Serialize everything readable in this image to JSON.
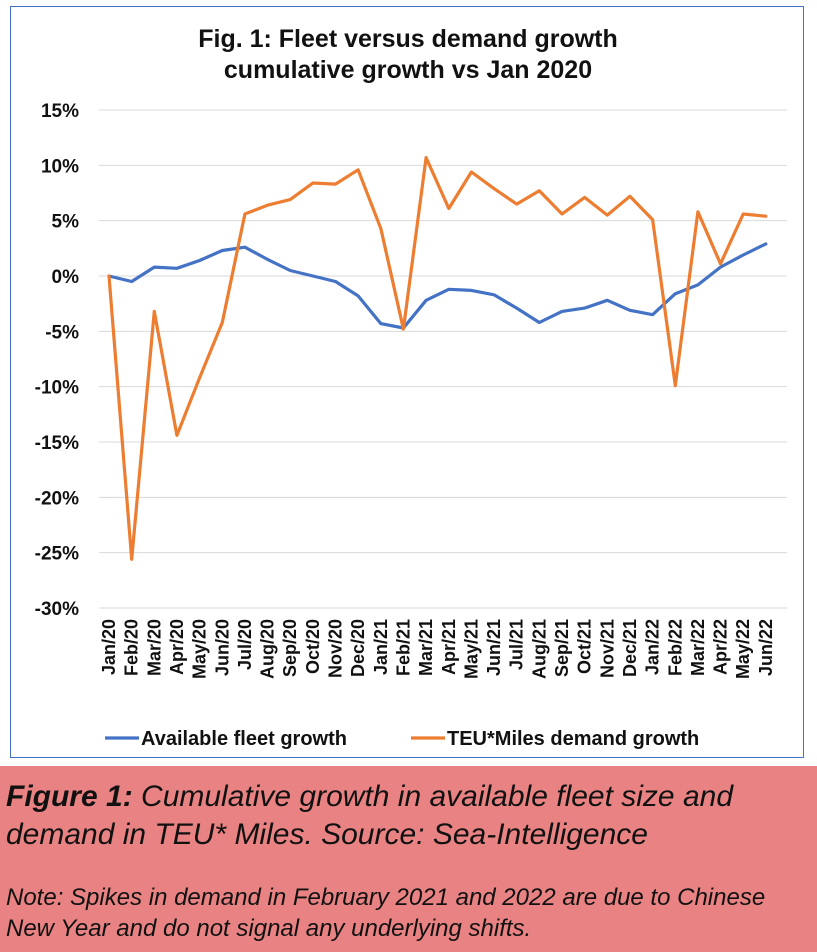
{
  "chart_data": {
    "type": "line",
    "title": "Fig. 1: Fleet versus demand growth",
    "subtitle": "cumulative growth vs Jan 2020",
    "xlabel": "",
    "ylabel": "",
    "ylim": [
      -30,
      15
    ],
    "yticks": [
      15,
      10,
      5,
      0,
      -5,
      -10,
      -15,
      -20,
      -25,
      -30
    ],
    "ytick_labels": [
      "15%",
      "10%",
      "5%",
      "0%",
      "-5%",
      "-10%",
      "-15%",
      "-20%",
      "-25%",
      "-30%"
    ],
    "categories": [
      "Jan/20",
      "Feb/20",
      "Mar/20",
      "Apr/20",
      "May/20",
      "Jun/20",
      "Jul/20",
      "Aug/20",
      "Sep/20",
      "Oct/20",
      "Nov/20",
      "Dec/20",
      "Jan/21",
      "Feb/21",
      "Mar/21",
      "Apr/21",
      "May/21",
      "Jun/21",
      "Jul/21",
      "Aug/21",
      "Sep/21",
      "Oct/21",
      "Nov/21",
      "Dec/21",
      "Jan/22",
      "Feb/22",
      "Mar/22",
      "Apr/22",
      "May/22",
      "Jun/22"
    ],
    "grid": true,
    "legend_position": "bottom",
    "series": [
      {
        "name": "Available fleet growth",
        "color": "#4472c4",
        "values": [
          0.0,
          -0.5,
          0.8,
          0.7,
          1.4,
          2.3,
          2.6,
          1.5,
          0.5,
          0.0,
          -0.5,
          -1.8,
          -4.3,
          -4.7,
          -2.2,
          -1.2,
          -1.3,
          -1.7,
          -2.9,
          -4.2,
          -3.2,
          -2.9,
          -2.2,
          -3.1,
          -3.5,
          -1.6,
          -0.8,
          0.8,
          1.9,
          2.9
        ]
      },
      {
        "name": "TEU*Miles demand growth",
        "color": "#ed7d31",
        "values": [
          0.0,
          -25.6,
          -3.2,
          -14.4,
          -9.2,
          -4.2,
          5.6,
          6.4,
          6.9,
          8.4,
          8.3,
          9.6,
          4.3,
          -4.8,
          10.7,
          6.1,
          9.4,
          7.9,
          6.5,
          7.7,
          5.6,
          7.1,
          5.5,
          7.2,
          5.1,
          -9.9,
          5.8,
          1.1,
          5.6,
          5.4
        ]
      }
    ]
  },
  "caption": {
    "lead": "Figure 1:",
    "text": " Cumulative growth in available fleet size and demand in TEU* Miles. Source: Sea-Intelligence",
    "note": "Note: Spikes in demand in February 2021 and 2022 are due to Chinese New Year and do not signal any underlying shifts.",
    "background": "#e98383"
  }
}
